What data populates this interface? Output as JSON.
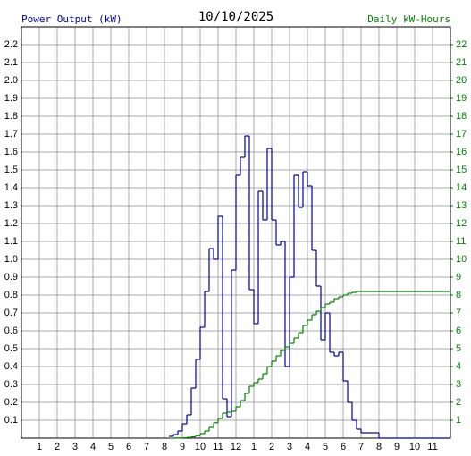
{
  "chart_data": {
    "type": "step",
    "title": "10/10/2025",
    "y_label": "Power Output (kW)",
    "y2_label": "Daily kW-Hours",
    "grid": true,
    "xlim": [
      0,
      24
    ],
    "xticks": [
      1,
      2,
      3,
      4,
      5,
      6,
      7,
      8,
      9,
      10,
      11,
      12,
      {
        "value": 13,
        "label": "1"
      },
      {
        "value": 14,
        "label": "2"
      },
      {
        "value": 15,
        "label": "3"
      },
      {
        "value": 16,
        "label": "4"
      },
      {
        "value": 17,
        "label": "5"
      },
      {
        "value": 18,
        "label": "6"
      },
      {
        "value": 19,
        "label": "7"
      },
      {
        "value": 20,
        "label": "8"
      },
      {
        "value": 21,
        "label": "9"
      },
      {
        "value": 22,
        "label": "10"
      },
      {
        "value": 23,
        "label": "11"
      }
    ],
    "ylim": [
      0,
      2.3
    ],
    "yticks": [
      0.1,
      0.2,
      0.3,
      0.4,
      0.5,
      0.6,
      0.7,
      0.8,
      0.9,
      {
        "value": 1,
        "label": "1.0"
      },
      1.1,
      1.2,
      1.3,
      1.4,
      1.5,
      1.6,
      1.7,
      1.8,
      1.9,
      {
        "value": 2,
        "label": "2.0"
      },
      2.1,
      2.2
    ],
    "y2lim": [
      0,
      23
    ],
    "y2ticks": [
      1,
      2,
      3,
      4,
      5,
      6,
      7,
      8,
      9,
      10,
      11,
      12,
      13,
      14,
      15,
      16,
      17,
      18,
      19,
      20,
      21,
      22
    ],
    "x": [
      8.25,
      8.5,
      8.75,
      9,
      9.25,
      9.5,
      9.75,
      10,
      10.25,
      10.5,
      10.75,
      11,
      11.25,
      11.5,
      11.75,
      12,
      12.25,
      12.5,
      12.75,
      13,
      13.25,
      13.5,
      13.75,
      14,
      14.25,
      14.5,
      14.75,
      15,
      15.25,
      15.5,
      15.75,
      16,
      16.25,
      16.5,
      16.75,
      17,
      17.25,
      17.5,
      17.75,
      18,
      18.25,
      18.5,
      18.75,
      19,
      19.25,
      19.5,
      19.75,
      20
    ],
    "series": [
      {
        "name": "Power Output (kW)",
        "color": "#0000a0",
        "values": [
          0.01,
          0.02,
          0.04,
          0.08,
          0.13,
          0.28,
          0.44,
          0.62,
          0.82,
          1.06,
          1.0,
          1.24,
          0.22,
          0.12,
          0.94,
          1.47,
          1.57,
          1.69,
          0.83,
          0.64,
          1.38,
          1.22,
          1.62,
          1.22,
          1.08,
          1.1,
          0.4,
          0.9,
          1.47,
          1.29,
          1.49,
          1.41,
          1.05,
          0.85,
          0.55,
          0.7,
          0.48,
          0.46,
          0.48,
          0.32,
          0.2,
          0.1,
          0.05,
          0.03,
          0.03,
          0.03,
          0.03,
          0
        ]
      },
      {
        "name": "Daily kW-Hours",
        "color": "#008000",
        "axis": "y2",
        "values": [
          0,
          0.01,
          0.01,
          0.02,
          0.04,
          0.07,
          0.14,
          0.25,
          0.4,
          0.6,
          0.86,
          1.1,
          1.4,
          1.45,
          1.5,
          1.75,
          2.1,
          2.5,
          2.9,
          3.1,
          3.3,
          3.6,
          4.0,
          4.3,
          4.6,
          4.9,
          5.1,
          5.3,
          5.6,
          5.9,
          6.3,
          6.6,
          6.9,
          7.1,
          7.3,
          7.5,
          7.6,
          7.8,
          7.9,
          8.0,
          8.1,
          8.15,
          8.2,
          8.2,
          8.2,
          8.2,
          8.2,
          8.2
        ]
      }
    ]
  }
}
